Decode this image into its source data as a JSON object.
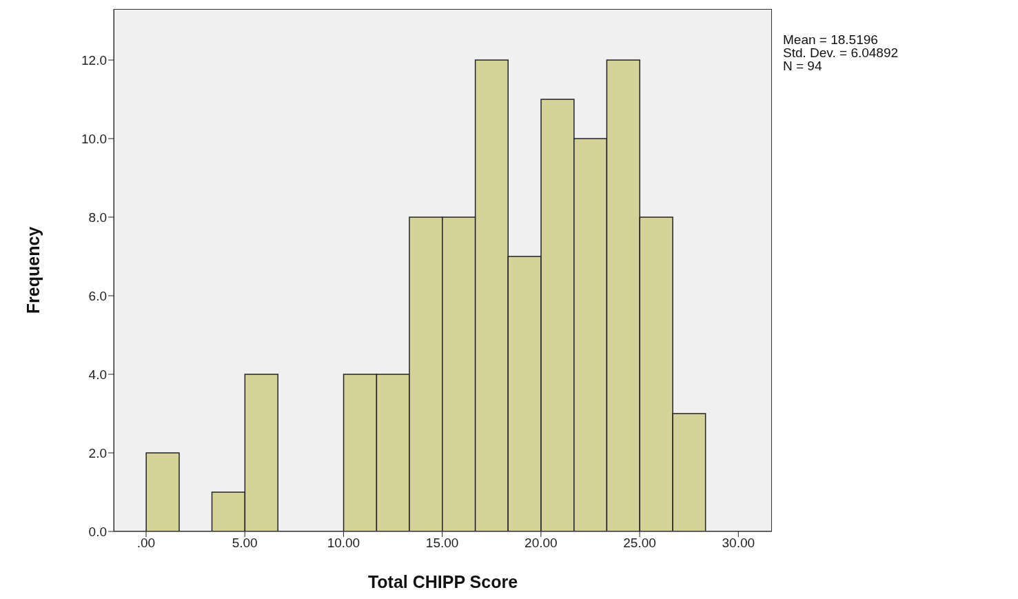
{
  "chart_data": {
    "type": "histogram",
    "xlabel": "Total CHIPP Score",
    "ylabel": "Frequency",
    "bins": [
      0,
      1.67,
      3.33,
      5,
      6.67,
      8.33,
      10,
      11.67,
      13.33,
      15,
      16.67,
      18.33,
      20,
      21.67,
      23.33,
      25,
      26.67,
      28.33
    ],
    "values": [
      2,
      0,
      1,
      4,
      0,
      0,
      4,
      4,
      8,
      8,
      12,
      7,
      11,
      10,
      12,
      8,
      3
    ],
    "color": "#d6d39a",
    "xlim": [
      -1.64,
      31.7
    ],
    "ylim": [
      0,
      13.3
    ],
    "xticks": [
      {
        "value": 0,
        "label": ".00"
      },
      {
        "value": 5,
        "label": "5.00"
      },
      {
        "value": 10,
        "label": "10.00"
      },
      {
        "value": 15,
        "label": "15.00"
      },
      {
        "value": 20,
        "label": "20.00"
      },
      {
        "value": 25,
        "label": "25.00"
      },
      {
        "value": 30,
        "label": "30.00"
      }
    ],
    "yticks": [
      {
        "value": 0,
        "label": "0.0"
      },
      {
        "value": 2,
        "label": "2.0"
      },
      {
        "value": 4,
        "label": "4.0"
      },
      {
        "value": 6,
        "label": "6.0"
      },
      {
        "value": 8,
        "label": "8.0"
      },
      {
        "value": 10,
        "label": "10.0"
      },
      {
        "value": 12,
        "label": "12.0"
      }
    ],
    "annotations": [
      "Mean = 18.5196",
      "Std. Dev. = 6.04892",
      "N = 94"
    ],
    "grid": false
  }
}
